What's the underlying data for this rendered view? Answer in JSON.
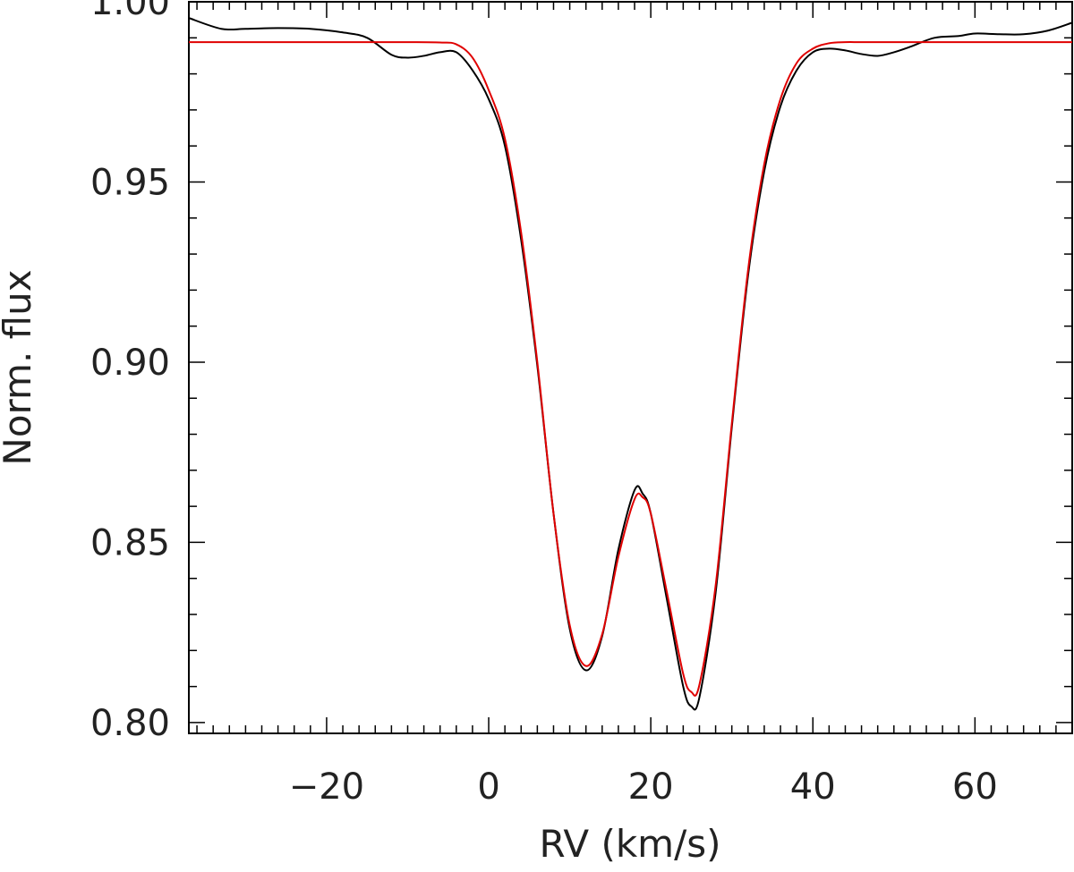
{
  "chart_data": {
    "type": "line",
    "title": "",
    "xlabel": "RV (km/s)",
    "ylabel": "Norm. flux",
    "xlim": [
      -37,
      72
    ],
    "ylim": [
      0.797,
      1.0
    ],
    "x_ticks": [
      -20,
      0,
      20,
      40,
      60
    ],
    "x_tick_labels": [
      "−20",
      "0",
      "20",
      "40",
      "60"
    ],
    "x_minor_step": 2,
    "y_ticks": [
      0.8,
      0.85,
      0.9,
      0.95,
      1.0
    ],
    "y_tick_labels": [
      "0.80",
      "0.85",
      "0.90",
      "0.95",
      "1.00"
    ],
    "y_minor_step": 0.01,
    "grid": false,
    "series": [
      {
        "color": "#000000",
        "x": [
          -37,
          -33,
          -30,
          -26,
          -22,
          -18,
          -15,
          -12,
          -10,
          -8,
          -6,
          -4,
          -2,
          0,
          2,
          4,
          6,
          8,
          10,
          12,
          14,
          16,
          18,
          19,
          20,
          22,
          24,
          25,
          26,
          28,
          30,
          32,
          34,
          36,
          38,
          40,
          42,
          44,
          46,
          48,
          50,
          52,
          55,
          58,
          60,
          63,
          66,
          69,
          72
        ],
        "y": [
          0.9955,
          0.9925,
          0.9925,
          0.9927,
          0.9925,
          0.9915,
          0.99,
          0.9853,
          0.9845,
          0.985,
          0.986,
          0.986,
          0.981,
          0.973,
          0.96,
          0.934,
          0.899,
          0.858,
          0.826,
          0.8145,
          0.824,
          0.848,
          0.8645,
          0.8635,
          0.858,
          0.834,
          0.81,
          0.8045,
          0.807,
          0.836,
          0.882,
          0.924,
          0.953,
          0.971,
          0.981,
          0.986,
          0.987,
          0.9865,
          0.9855,
          0.985,
          0.986,
          0.9875,
          0.99,
          0.9905,
          0.9912,
          0.991,
          0.991,
          0.992,
          0.9942
        ]
      },
      {
        "color": "#e00000",
        "x": [
          -37,
          -20,
          -10,
          -6,
          -4,
          -2,
          0,
          2,
          4,
          6,
          8,
          10,
          12,
          14,
          16,
          18,
          19,
          20,
          22,
          24,
          25,
          26,
          28,
          30,
          32,
          34,
          36,
          38,
          40,
          42,
          44,
          46,
          50,
          60,
          72
        ],
        "y": [
          0.9888,
          0.9888,
          0.9888,
          0.9887,
          0.9882,
          0.9845,
          0.9755,
          0.962,
          0.936,
          0.9,
          0.858,
          0.827,
          0.8157,
          0.8245,
          0.846,
          0.862,
          0.8625,
          0.858,
          0.836,
          0.8135,
          0.8085,
          0.8105,
          0.838,
          0.883,
          0.9255,
          0.955,
          0.973,
          0.983,
          0.987,
          0.9885,
          0.9888,
          0.9888,
          0.9888,
          0.9888,
          0.9888
        ]
      }
    ]
  }
}
